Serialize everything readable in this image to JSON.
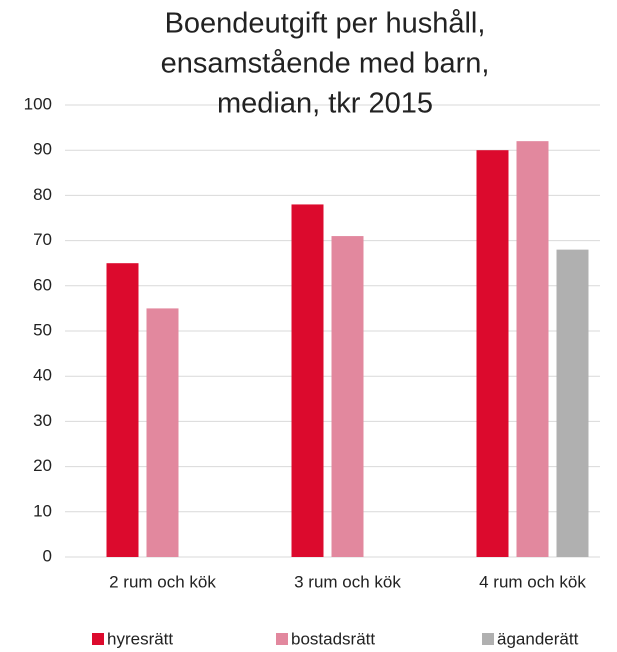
{
  "chart_data": {
    "type": "bar",
    "title": [
      "Boendeutgift per hushåll,",
      "ensamstående med barn,",
      "median, tkr 2015"
    ],
    "categories": [
      "2 rum och kök",
      "3 rum och kök",
      "4 rum och kök"
    ],
    "series": [
      {
        "name": "hyresrätt",
        "color": "#dc0a2d",
        "values": [
          65,
          78,
          90
        ]
      },
      {
        "name": "bostadsrätt",
        "color": "#e2889e",
        "values": [
          55,
          71,
          92
        ]
      },
      {
        "name": "äganderätt",
        "color": "#b0b0b0",
        "values": [
          null,
          null,
          68
        ]
      }
    ],
    "ylim": [
      0,
      100
    ],
    "yticks": [
      0,
      10,
      20,
      30,
      40,
      50,
      60,
      70,
      80,
      90,
      100
    ],
    "grid": true,
    "legend": "bottom"
  }
}
